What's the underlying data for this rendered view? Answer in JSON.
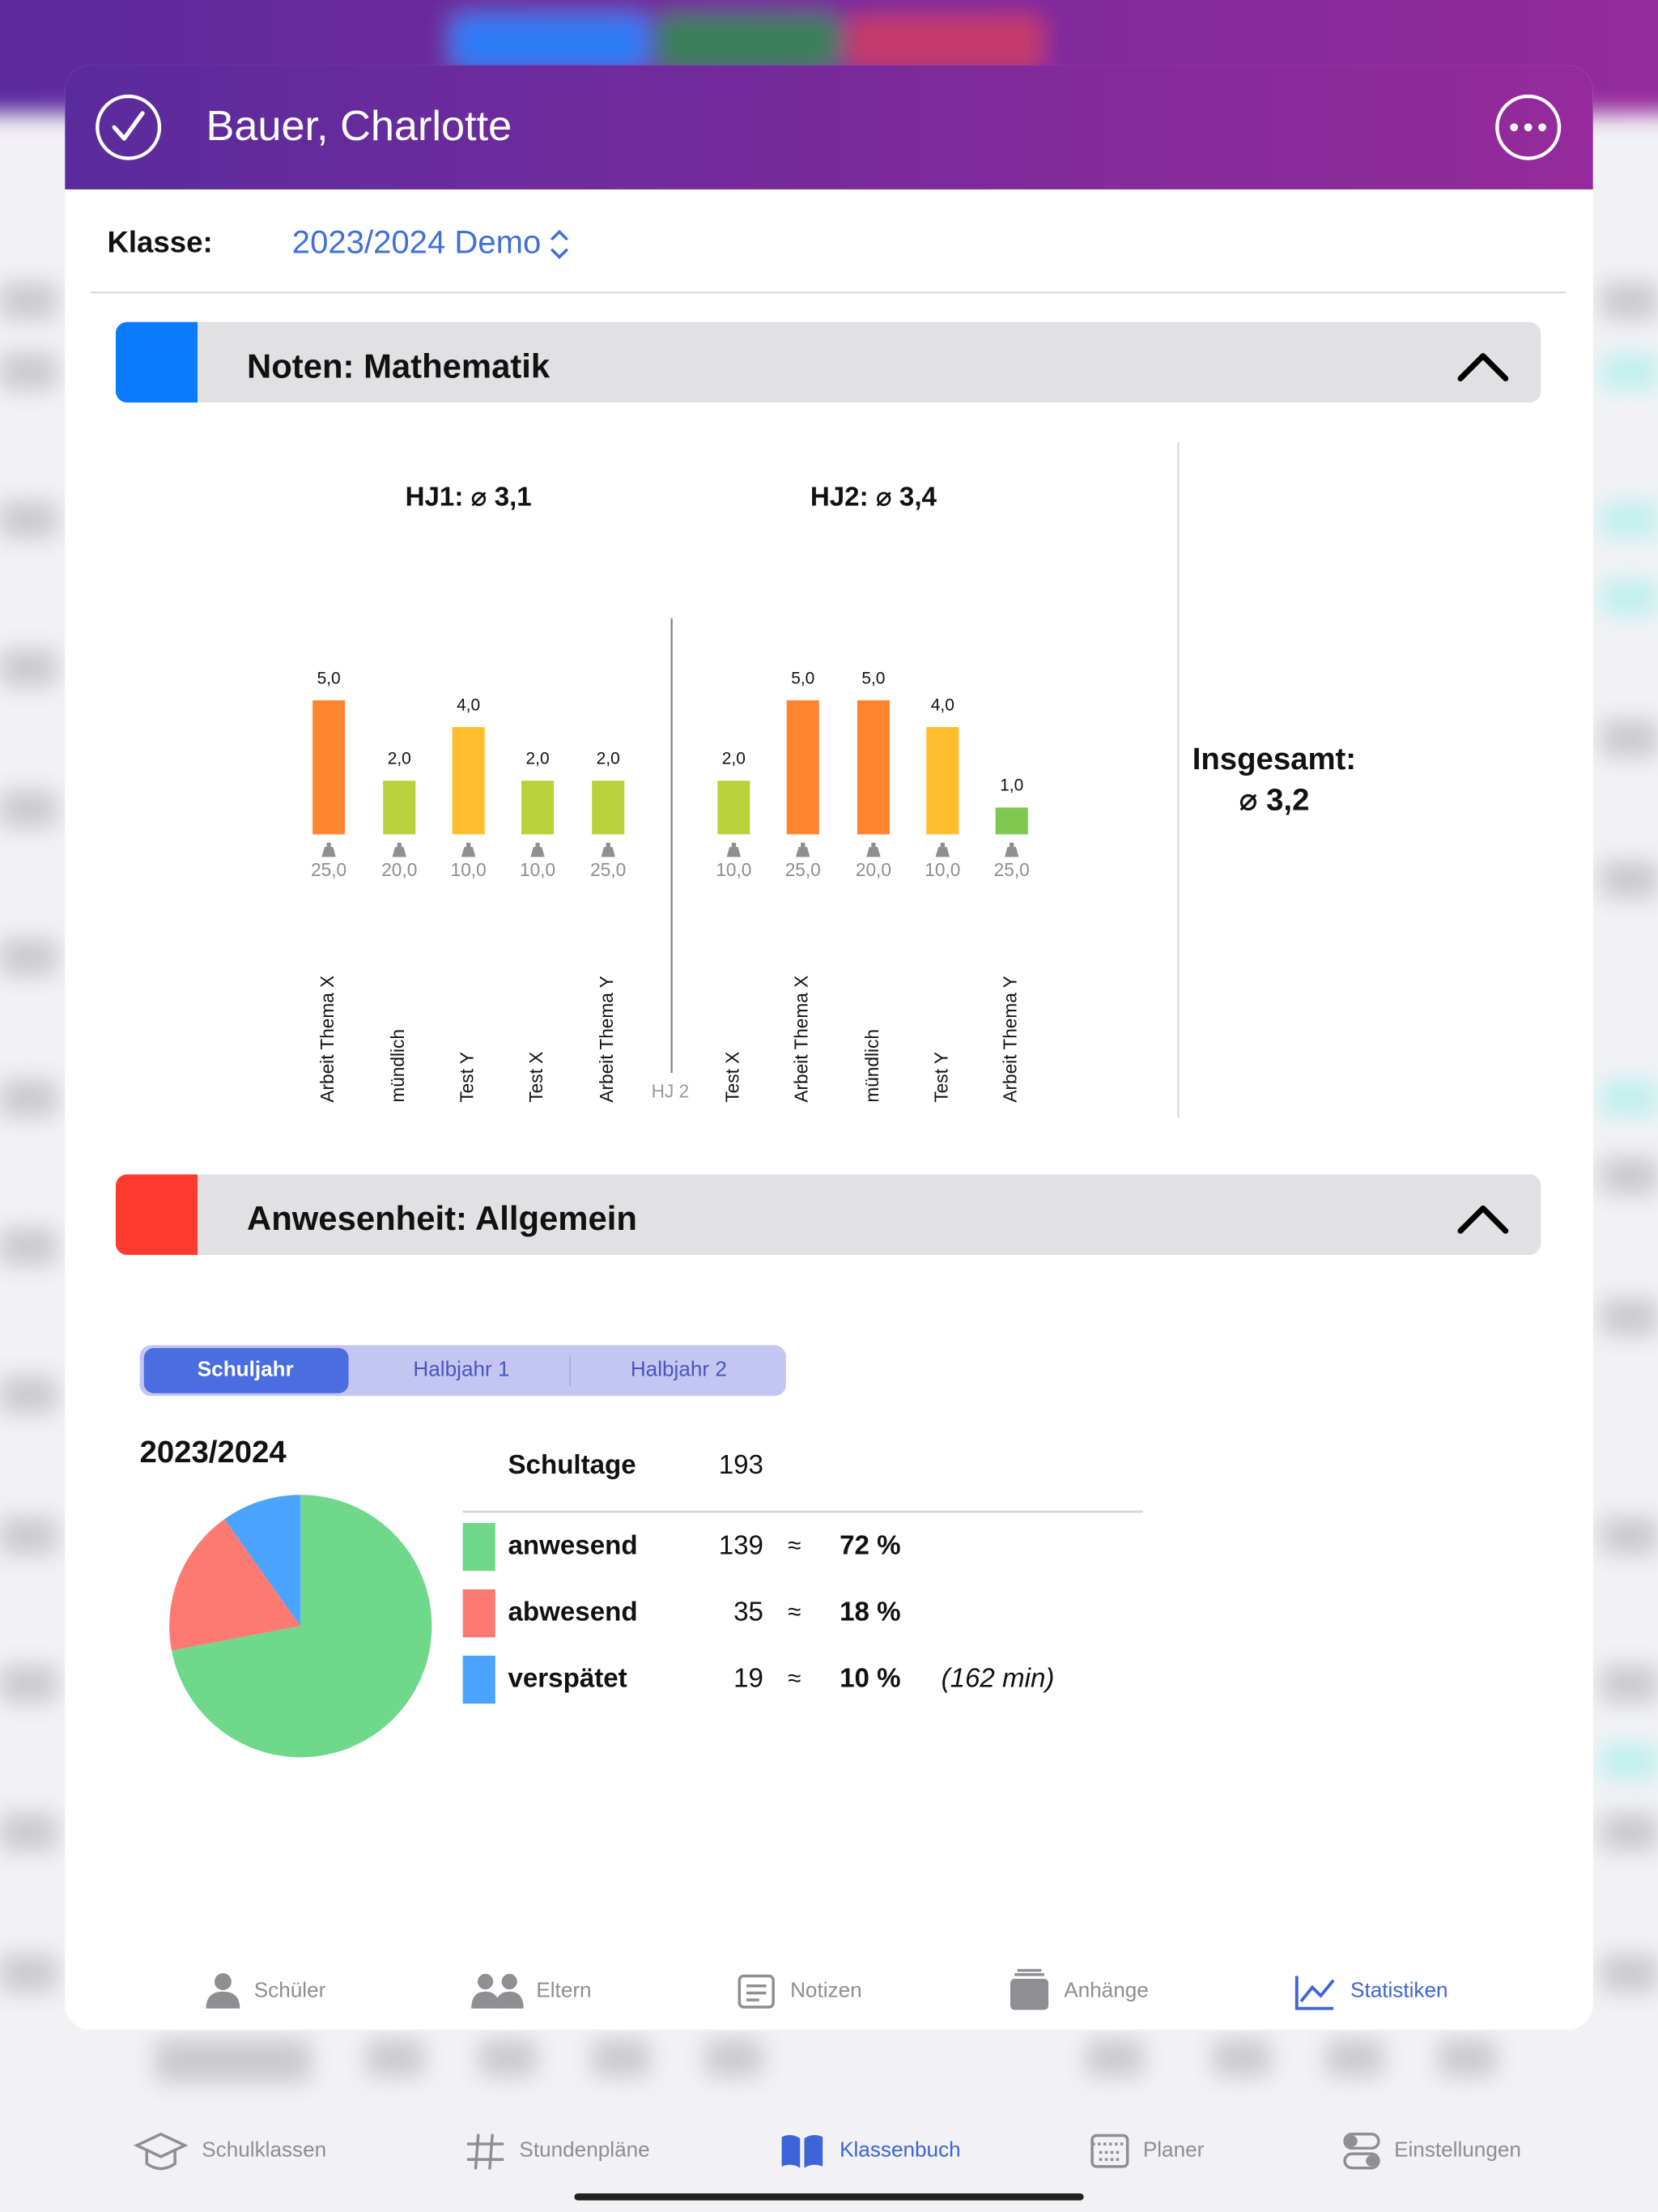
{
  "header": {
    "title": "Bauer, Charlotte"
  },
  "class_picker": {
    "label": "Klasse:",
    "value": "2023/2024 Demo"
  },
  "grades_section": {
    "title": "Noten: Mathematik",
    "divider_label": "HJ 2",
    "total": {
      "label": "Insgesamt:",
      "value": "⌀ 3,2"
    },
    "terms": [
      {
        "title": "HJ1: ⌀ 3,1",
        "items": [
          {
            "name": "Arbeit Thema X",
            "grade": 5,
            "grade_label": "5,0",
            "weight": "25,0",
            "color": "#ff8430"
          },
          {
            "name": "mündlich",
            "grade": 2,
            "grade_label": "2,0",
            "weight": "20,0",
            "color": "#b9d23a"
          },
          {
            "name": "Test Y",
            "grade": 4,
            "grade_label": "4,0",
            "weight": "10,0",
            "color": "#ffbd2e"
          },
          {
            "name": "Test X",
            "grade": 2,
            "grade_label": "2,0",
            "weight": "10,0",
            "color": "#b9d23a"
          },
          {
            "name": "Arbeit Thema Y",
            "grade": 2,
            "grade_label": "2,0",
            "weight": "25,0",
            "color": "#b9d23a"
          }
        ]
      },
      {
        "title": "HJ2: ⌀ 3,4",
        "items": [
          {
            "name": "Test X",
            "grade": 2,
            "grade_label": "2,0",
            "weight": "10,0",
            "color": "#b9d23a"
          },
          {
            "name": "Arbeit Thema X",
            "grade": 5,
            "grade_label": "5,0",
            "weight": "25,0",
            "color": "#ff8430"
          },
          {
            "name": "mündlich",
            "grade": 5,
            "grade_label": "5,0",
            "weight": "20,0",
            "color": "#ff8430"
          },
          {
            "name": "Test Y",
            "grade": 4,
            "grade_label": "4,0",
            "weight": "10,0",
            "color": "#ffbd2e"
          },
          {
            "name": "Arbeit Thema Y",
            "grade": 1,
            "grade_label": "1,0",
            "weight": "25,0",
            "color": "#7ec850"
          }
        ]
      }
    ]
  },
  "attendance_section": {
    "title": "Anwesenheit: Allgemein",
    "tabs": [
      "Schuljahr",
      "Halbjahr 1",
      "Halbjahr 2"
    ],
    "selected_tab": 0,
    "year": "2023/2024",
    "total": {
      "label": "Schultage",
      "value": 193
    },
    "rows": [
      {
        "label": "anwesend",
        "count": 139,
        "approx": "≈",
        "percent": "72 %",
        "color": "#6fd88a"
      },
      {
        "label": "abwesend",
        "count": 35,
        "approx": "≈",
        "percent": "18 %",
        "color": "#fd7a72"
      },
      {
        "label": "verspätet",
        "count": 19,
        "approx": "≈",
        "percent": "10 %",
        "note": "(162 min)",
        "color": "#4aa3ff"
      }
    ]
  },
  "inner_tabs": [
    "Schüler",
    "Eltern",
    "Notizen",
    "Anhänge",
    "Statistiken"
  ],
  "inner_selected": 4,
  "main_tabs": [
    "Schulklassen",
    "Stundenpläne",
    "Klassenbuch",
    "Planer",
    "Einstellungen"
  ],
  "main_selected": 2
}
